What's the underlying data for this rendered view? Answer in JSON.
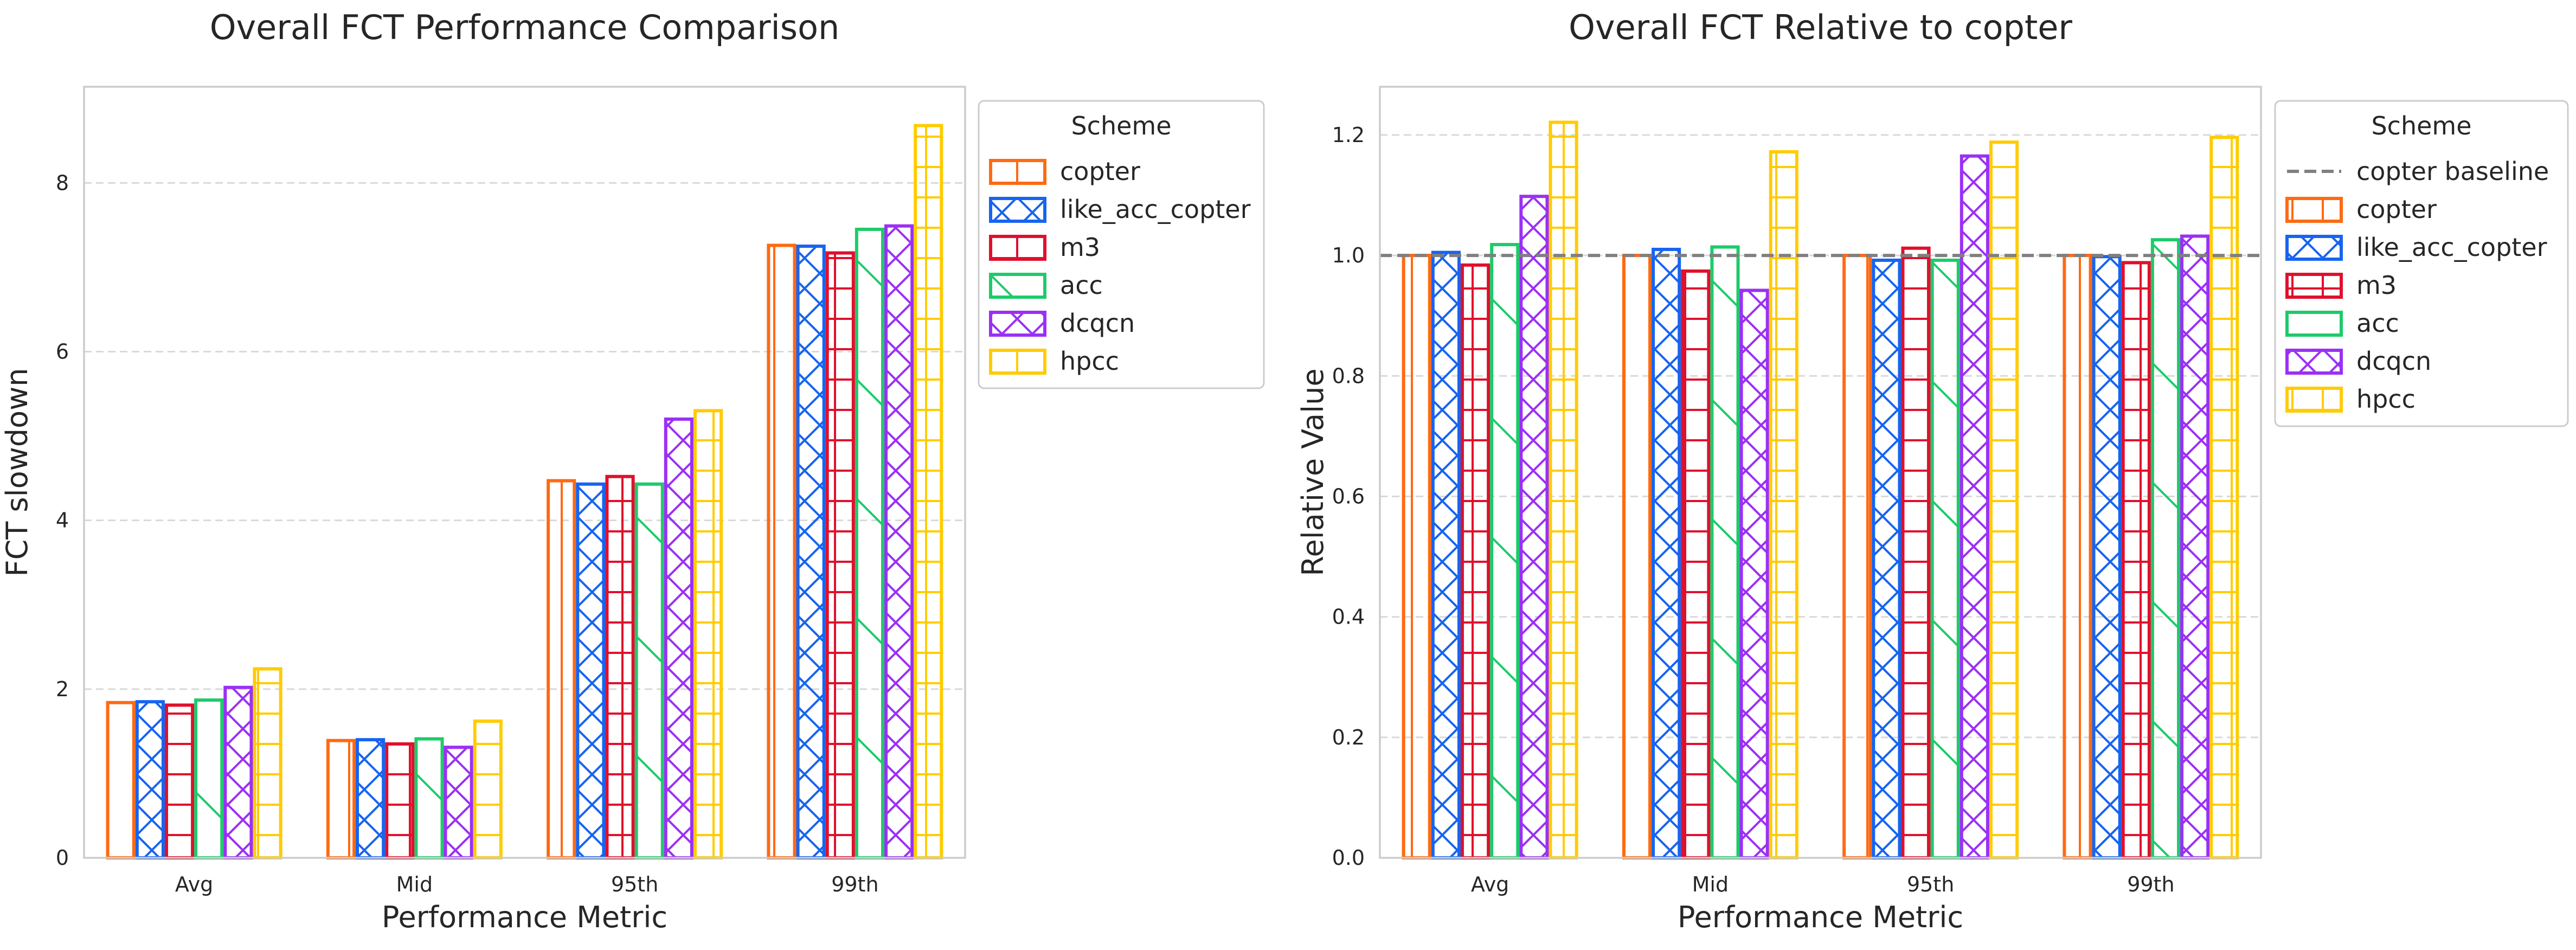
{
  "colors": {
    "copter": "#FF6A13",
    "like_acc_copter": "#1764F0",
    "m3": "#E0102D",
    "acc": "#1DCB6A",
    "dcqcn": "#9B30F5",
    "hpcc": "#FFCC00",
    "baseline": "#808080",
    "grid": "#d9d9d9",
    "axes": "#cccccc",
    "text": "#262626"
  },
  "chart_data": [
    {
      "type": "bar",
      "title": "Overall FCT Performance Comparison",
      "xlabel": "Performance Metric",
      "ylabel": "FCT slowdown",
      "categories": [
        "Avg",
        "Mid",
        "95th",
        "99th"
      ],
      "ylim": [
        0,
        9.14
      ],
      "yticks": [
        0,
        2,
        4,
        6,
        8
      ],
      "ytick_labels": [
        "0",
        "2",
        "4",
        "6",
        "8"
      ],
      "grid": true,
      "legend": {
        "title": "Scheme",
        "placement": "outside-top-right"
      },
      "series": [
        {
          "name": "copter",
          "hatch": "vline",
          "values": [
            1.84,
            1.39,
            4.47,
            7.26
          ]
        },
        {
          "name": "like_acc_copter",
          "hatch": "cross",
          "values": [
            1.85,
            1.4,
            4.43,
            7.25
          ]
        },
        {
          "name": "m3",
          "hatch": "grid",
          "values": [
            1.81,
            1.35,
            4.52,
            7.17
          ]
        },
        {
          "name": "acc",
          "hatch": "diag",
          "values": [
            1.87,
            1.41,
            4.43,
            7.45
          ]
        },
        {
          "name": "dcqcn",
          "hatch": "cross",
          "values": [
            2.02,
            1.31,
            5.2,
            7.49
          ]
        },
        {
          "name": "hpcc",
          "hatch": "grid",
          "values": [
            2.24,
            1.62,
            5.3,
            8.68
          ]
        }
      ]
    },
    {
      "type": "bar",
      "title": "Overall FCT Relative to copter",
      "xlabel": "Performance Metric",
      "ylabel": "Relative Value",
      "categories": [
        "Avg",
        "Mid",
        "95th",
        "99th"
      ],
      "ylim": [
        0,
        1.28
      ],
      "yticks": [
        0,
        0.2,
        0.4,
        0.6,
        0.8,
        1.0,
        1.2
      ],
      "ytick_labels": [
        "0.0",
        "0.2",
        "0.4",
        "0.6",
        "0.8",
        "1.0",
        "1.2"
      ],
      "grid": true,
      "baseline": {
        "name": "copter baseline",
        "value": 1.0
      },
      "legend": {
        "title": "Scheme",
        "placement": "outside-top-right"
      },
      "series": [
        {
          "name": "copter",
          "hatch": "vline",
          "values": [
            1.0,
            1.0,
            1.0,
            1.0
          ]
        },
        {
          "name": "like_acc_copter",
          "hatch": "cross",
          "values": [
            1.005,
            1.01,
            0.992,
            0.998
          ]
        },
        {
          "name": "m3",
          "hatch": "grid",
          "values": [
            0.984,
            0.974,
            1.012,
            0.988
          ]
        },
        {
          "name": "acc",
          "hatch": "diag",
          "values": [
            1.018,
            1.014,
            0.992,
            1.026
          ]
        },
        {
          "name": "dcqcn",
          "hatch": "cross",
          "values": [
            1.098,
            0.942,
            1.165,
            1.032
          ]
        },
        {
          "name": "hpcc",
          "hatch": "grid",
          "values": [
            1.221,
            1.172,
            1.188,
            1.196
          ]
        }
      ]
    }
  ]
}
